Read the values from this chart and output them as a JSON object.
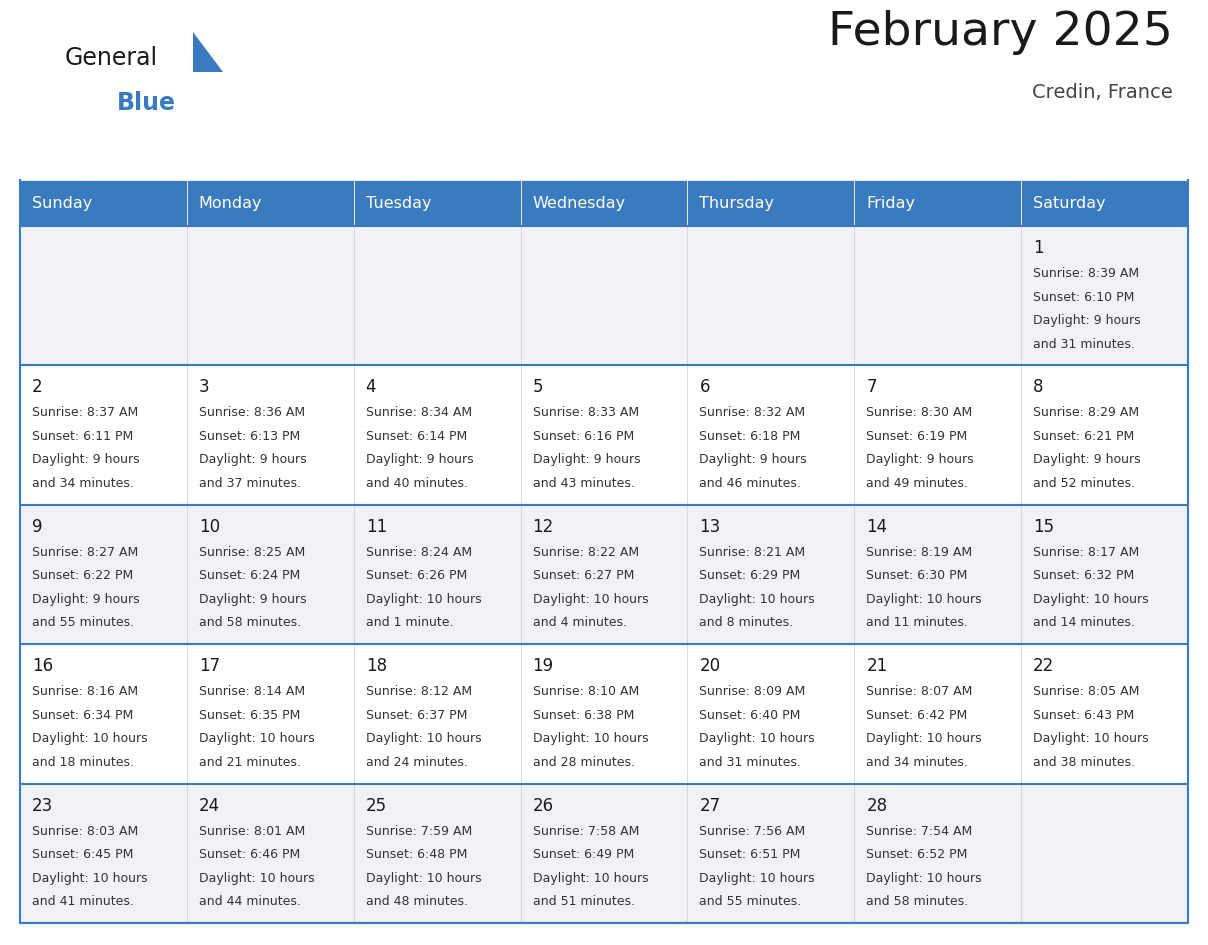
{
  "title": "February 2025",
  "subtitle": "Credin, France",
  "days_of_week": [
    "Sunday",
    "Monday",
    "Tuesday",
    "Wednesday",
    "Thursday",
    "Friday",
    "Saturday"
  ],
  "header_bg_color": "#3a7abf",
  "header_text_color": "#ffffff",
  "cell_bg_even": "#f0f2f5",
  "cell_bg_odd": "#ffffff",
  "grid_line_color": "#3a7abf",
  "title_color": "#1a1a1a",
  "subtitle_color": "#444444",
  "day_number_color": "#1a1a1a",
  "info_color": "#333333",
  "calendar_data": [
    [
      null,
      null,
      null,
      null,
      null,
      null,
      {
        "day": 1,
        "sunrise": "8:39 AM",
        "sunset": "6:10 PM",
        "daylight_line1": "Daylight: 9 hours",
        "daylight_line2": "and 31 minutes."
      }
    ],
    [
      {
        "day": 2,
        "sunrise": "8:37 AM",
        "sunset": "6:11 PM",
        "daylight_line1": "Daylight: 9 hours",
        "daylight_line2": "and 34 minutes."
      },
      {
        "day": 3,
        "sunrise": "8:36 AM",
        "sunset": "6:13 PM",
        "daylight_line1": "Daylight: 9 hours",
        "daylight_line2": "and 37 minutes."
      },
      {
        "day": 4,
        "sunrise": "8:34 AM",
        "sunset": "6:14 PM",
        "daylight_line1": "Daylight: 9 hours",
        "daylight_line2": "and 40 minutes."
      },
      {
        "day": 5,
        "sunrise": "8:33 AM",
        "sunset": "6:16 PM",
        "daylight_line1": "Daylight: 9 hours",
        "daylight_line2": "and 43 minutes."
      },
      {
        "day": 6,
        "sunrise": "8:32 AM",
        "sunset": "6:18 PM",
        "daylight_line1": "Daylight: 9 hours",
        "daylight_line2": "and 46 minutes."
      },
      {
        "day": 7,
        "sunrise": "8:30 AM",
        "sunset": "6:19 PM",
        "daylight_line1": "Daylight: 9 hours",
        "daylight_line2": "and 49 minutes."
      },
      {
        "day": 8,
        "sunrise": "8:29 AM",
        "sunset": "6:21 PM",
        "daylight_line1": "Daylight: 9 hours",
        "daylight_line2": "and 52 minutes."
      }
    ],
    [
      {
        "day": 9,
        "sunrise": "8:27 AM",
        "sunset": "6:22 PM",
        "daylight_line1": "Daylight: 9 hours",
        "daylight_line2": "and 55 minutes."
      },
      {
        "day": 10,
        "sunrise": "8:25 AM",
        "sunset": "6:24 PM",
        "daylight_line1": "Daylight: 9 hours",
        "daylight_line2": "and 58 minutes."
      },
      {
        "day": 11,
        "sunrise": "8:24 AM",
        "sunset": "6:26 PM",
        "daylight_line1": "Daylight: 10 hours",
        "daylight_line2": "and 1 minute."
      },
      {
        "day": 12,
        "sunrise": "8:22 AM",
        "sunset": "6:27 PM",
        "daylight_line1": "Daylight: 10 hours",
        "daylight_line2": "and 4 minutes."
      },
      {
        "day": 13,
        "sunrise": "8:21 AM",
        "sunset": "6:29 PM",
        "daylight_line1": "Daylight: 10 hours",
        "daylight_line2": "and 8 minutes."
      },
      {
        "day": 14,
        "sunrise": "8:19 AM",
        "sunset": "6:30 PM",
        "daylight_line1": "Daylight: 10 hours",
        "daylight_line2": "and 11 minutes."
      },
      {
        "day": 15,
        "sunrise": "8:17 AM",
        "sunset": "6:32 PM",
        "daylight_line1": "Daylight: 10 hours",
        "daylight_line2": "and 14 minutes."
      }
    ],
    [
      {
        "day": 16,
        "sunrise": "8:16 AM",
        "sunset": "6:34 PM",
        "daylight_line1": "Daylight: 10 hours",
        "daylight_line2": "and 18 minutes."
      },
      {
        "day": 17,
        "sunrise": "8:14 AM",
        "sunset": "6:35 PM",
        "daylight_line1": "Daylight: 10 hours",
        "daylight_line2": "and 21 minutes."
      },
      {
        "day": 18,
        "sunrise": "8:12 AM",
        "sunset": "6:37 PM",
        "daylight_line1": "Daylight: 10 hours",
        "daylight_line2": "and 24 minutes."
      },
      {
        "day": 19,
        "sunrise": "8:10 AM",
        "sunset": "6:38 PM",
        "daylight_line1": "Daylight: 10 hours",
        "daylight_line2": "and 28 minutes."
      },
      {
        "day": 20,
        "sunrise": "8:09 AM",
        "sunset": "6:40 PM",
        "daylight_line1": "Daylight: 10 hours",
        "daylight_line2": "and 31 minutes."
      },
      {
        "day": 21,
        "sunrise": "8:07 AM",
        "sunset": "6:42 PM",
        "daylight_line1": "Daylight: 10 hours",
        "daylight_line2": "and 34 minutes."
      },
      {
        "day": 22,
        "sunrise": "8:05 AM",
        "sunset": "6:43 PM",
        "daylight_line1": "Daylight: 10 hours",
        "daylight_line2": "and 38 minutes."
      }
    ],
    [
      {
        "day": 23,
        "sunrise": "8:03 AM",
        "sunset": "6:45 PM",
        "daylight_line1": "Daylight: 10 hours",
        "daylight_line2": "and 41 minutes."
      },
      {
        "day": 24,
        "sunrise": "8:01 AM",
        "sunset": "6:46 PM",
        "daylight_line1": "Daylight: 10 hours",
        "daylight_line2": "and 44 minutes."
      },
      {
        "day": 25,
        "sunrise": "7:59 AM",
        "sunset": "6:48 PM",
        "daylight_line1": "Daylight: 10 hours",
        "daylight_line2": "and 48 minutes."
      },
      {
        "day": 26,
        "sunrise": "7:58 AM",
        "sunset": "6:49 PM",
        "daylight_line1": "Daylight: 10 hours",
        "daylight_line2": "and 51 minutes."
      },
      {
        "day": 27,
        "sunrise": "7:56 AM",
        "sunset": "6:51 PM",
        "daylight_line1": "Daylight: 10 hours",
        "daylight_line2": "and 55 minutes."
      },
      {
        "day": 28,
        "sunrise": "7:54 AM",
        "sunset": "6:52 PM",
        "daylight_line1": "Daylight: 10 hours",
        "daylight_line2": "and 58 minutes."
      },
      null
    ]
  ]
}
